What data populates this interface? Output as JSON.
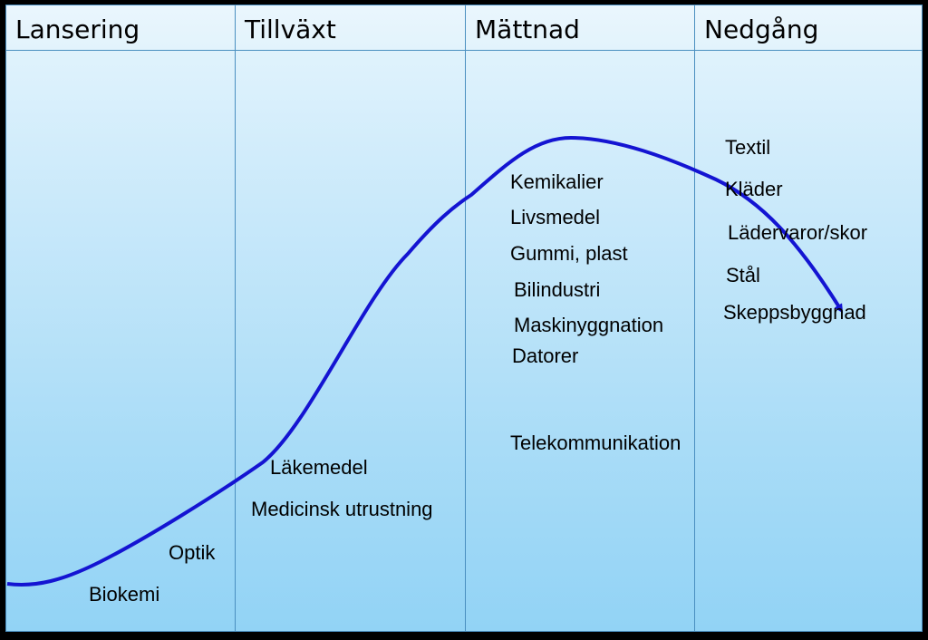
{
  "phases": [
    {
      "label": "Lansering"
    },
    {
      "label": "Tillväxt"
    },
    {
      "label": "Mättnad"
    },
    {
      "label": "Nedgång"
    }
  ],
  "industries": {
    "biokemi": "Biokemi",
    "optik": "Optik",
    "lakemedel": "Läkemedel",
    "medicinsk_utrustning": "Medicinsk utrustning",
    "kemikalier": "Kemikalier",
    "livsmedel": "Livsmedel",
    "gummi_plast": "Gummi, plast",
    "bilindustri": "Bilindustri",
    "maskinyggnation": "Maskinyggnation",
    "datorer": "Datorer",
    "telekommunikation": "Telekommunikation",
    "textil": "Textil",
    "klader": "Kläder",
    "ladervaror_skor": "Lädervaror/skor",
    "stal": "Stål",
    "skeppsbyggnad": "Skeppsbyggnad"
  },
  "colors": {
    "curve": "#1414d2",
    "divider": "#4a8fc0",
    "background_top": "#e6f5fd",
    "background_bottom": "#92d3f5"
  }
}
